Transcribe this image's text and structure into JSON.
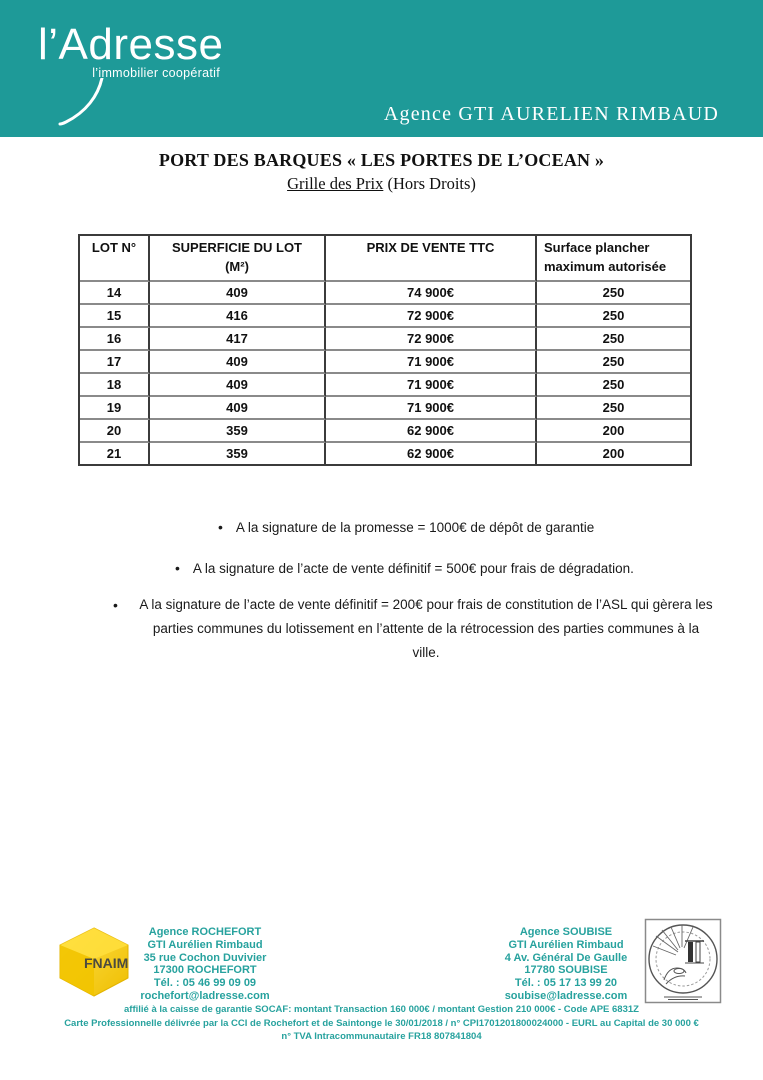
{
  "page": {
    "accent_teal": "#1e9a98",
    "footer_teal": "#27a29e",
    "fnaim_yellow": "#f6c900"
  },
  "header": {
    "logo_name": "l’Adresse",
    "logo_tagline": "l’immobilier coopératif",
    "agency_banner": "Agence GTI AURELIEN RIMBAUD"
  },
  "title": {
    "main": "PORT DES BARQUES « LES PORTES DE L’OCEAN »",
    "sub_underlined": "Grille des Prix",
    "sub_plain": " (Hors Droits)"
  },
  "price_table": {
    "headers": [
      {
        "line1": "LOT N°",
        "line2": ""
      },
      {
        "line1": "SUPERFICIE DU LOT",
        "line2": "(M²)"
      },
      {
        "line1": "PRIX DE VENTE TTC",
        "line2": ""
      },
      {
        "line1": "Surface plancher",
        "line2": "maximum autorisée"
      }
    ],
    "rows": [
      [
        "14",
        "409",
        "74 900€",
        "250"
      ],
      [
        "15",
        "416",
        "72 900€",
        "250"
      ],
      [
        "16",
        "417",
        "72 900€",
        "250"
      ],
      [
        "17",
        "409",
        "71 900€",
        "250"
      ],
      [
        "18",
        "409",
        "71 900€",
        "250"
      ],
      [
        "19",
        "409",
        "71 900€",
        "250"
      ],
      [
        "20",
        "359",
        "62 900€",
        "200"
      ],
      [
        "21",
        "359",
        "62 900€",
        "200"
      ]
    ]
  },
  "bullets": [
    "A la signature de la promesse = 1000€ de dépôt de garantie",
    "A la signature de l’acte de vente définitif = 500€ pour frais de dégradation.",
    "A la signature de l’acte de vente définitif = 200€ pour frais de constitution de l’ASL qui gèrera les parties communes du lotissement en l’attente de la rétrocession des parties communes à la ville."
  ],
  "footer": {
    "fnaim_label": "FNAIM",
    "rochefort": [
      "Agence ROCHEFORT",
      "GTI Aurélien Rimbaud",
      "35 rue Cochon Duvivier",
      "17300 ROCHEFORT",
      "Tél. : 05 46 99 09 09",
      "rochefort@ladresse.com"
    ],
    "soubise": [
      "Agence SOUBISE",
      "GTI Aurélien Rimbaud",
      "4 Av. Général De Gaulle",
      "17780 SOUBISE",
      "Tél. : 05 17 13 99 20",
      "soubise@ladresse.com"
    ],
    "legal": [
      "affilié à la caisse de garantie SOCAF: montant Transaction 160 000€ / montant Gestion 210 000€ - Code APE 6831Z",
      "Carte Professionnelle délivrée par la CCI de Rochefort et de Saintonge le 30/01/2018 / n° CPI1701201800024000 - EURL au Capital de 30 000 €",
      "n° TVA Intracommunautaire FR18 807841804"
    ]
  }
}
